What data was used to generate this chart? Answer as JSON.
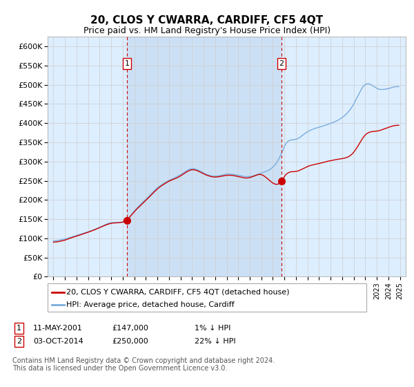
{
  "title": "20, CLOS Y CWARRA, CARDIFF, CF5 4QT",
  "subtitle": "Price paid vs. HM Land Registry's House Price Index (HPI)",
  "legend_line1": "20, CLOS Y CWARRA, CARDIFF, CF5 4QT (detached house)",
  "legend_line2": "HPI: Average price, detached house, Cardiff",
  "annotation1_label": "1",
  "annotation1_date": "11-MAY-2001",
  "annotation1_price": "£147,000",
  "annotation1_hpi": "1% ↓ HPI",
  "annotation1_year": 2001.36,
  "annotation1_value": 147000,
  "annotation2_label": "2",
  "annotation2_date": "03-OCT-2014",
  "annotation2_price": "£250,000",
  "annotation2_hpi": "22% ↓ HPI",
  "annotation2_year": 2014.75,
  "annotation2_value": 250000,
  "footer_line1": "Contains HM Land Registry data © Crown copyright and database right 2024.",
  "footer_line2": "This data is licensed under the Open Government Licence v3.0.",
  "ylim": [
    0,
    625000
  ],
  "yticks": [
    0,
    50000,
    100000,
    150000,
    200000,
    250000,
    300000,
    350000,
    400000,
    450000,
    500000,
    550000,
    600000
  ],
  "ytick_labels": [
    "£0",
    "£50K",
    "£100K",
    "£150K",
    "£200K",
    "£250K",
    "£300K",
    "£350K",
    "£400K",
    "£450K",
    "£500K",
    "£550K",
    "£600K"
  ],
  "xlim_start": 1994.5,
  "xlim_end": 2025.5,
  "hpi_color": "#7aacdb",
  "price_color": "#cc0000",
  "marker_color": "#cc0000",
  "marker_box_color": "#cc0000",
  "fig_bg": "#ffffff",
  "plot_bg": "#ddeeff",
  "highlight_bg": "#cce0f5",
  "grid_color": "#cccccc"
}
